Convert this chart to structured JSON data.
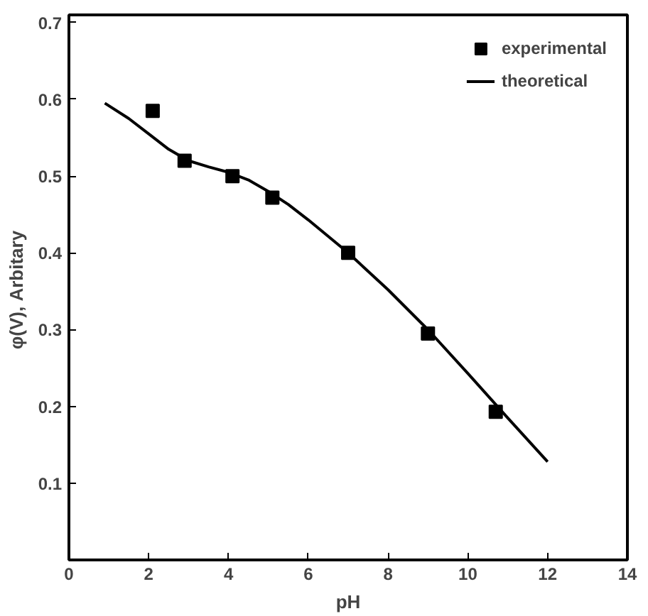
{
  "chart_data": {
    "type": "scatter",
    "xlabel": "pH",
    "ylabel": "φ(V),  Arbitary",
    "xlim": [
      0,
      14
    ],
    "ylim": [
      0,
      0.71
    ],
    "xticks": [
      0,
      2,
      4,
      6,
      8,
      10,
      12,
      14
    ],
    "yticks": [
      0.1,
      0.2,
      0.3,
      0.4,
      0.5,
      0.6,
      0.7
    ],
    "grid": false,
    "legend": "top right",
    "series": [
      {
        "name": "experimental",
        "marker": "square",
        "color": "#000000",
        "x": [
          2.1,
          2.9,
          4.1,
          5.1,
          7.0,
          9.0,
          10.7
        ],
        "values": [
          0.585,
          0.52,
          0.5,
          0.472,
          0.4,
          0.295,
          0.193
        ]
      },
      {
        "name": "theoretical",
        "type": "line",
        "line_style": "solid",
        "color": "#000000",
        "x": [
          0.9,
          1.5,
          2.0,
          2.5,
          3.0,
          3.5,
          4.0,
          4.5,
          5.0,
          5.5,
          6.0,
          7.0,
          8.0,
          9.0,
          10.0,
          11.0,
          12.0
        ],
        "values": [
          0.595,
          0.575,
          0.555,
          0.535,
          0.52,
          0.512,
          0.505,
          0.495,
          0.48,
          0.463,
          0.443,
          0.4,
          0.352,
          0.3,
          0.243,
          0.185,
          0.128
        ]
      }
    ]
  }
}
